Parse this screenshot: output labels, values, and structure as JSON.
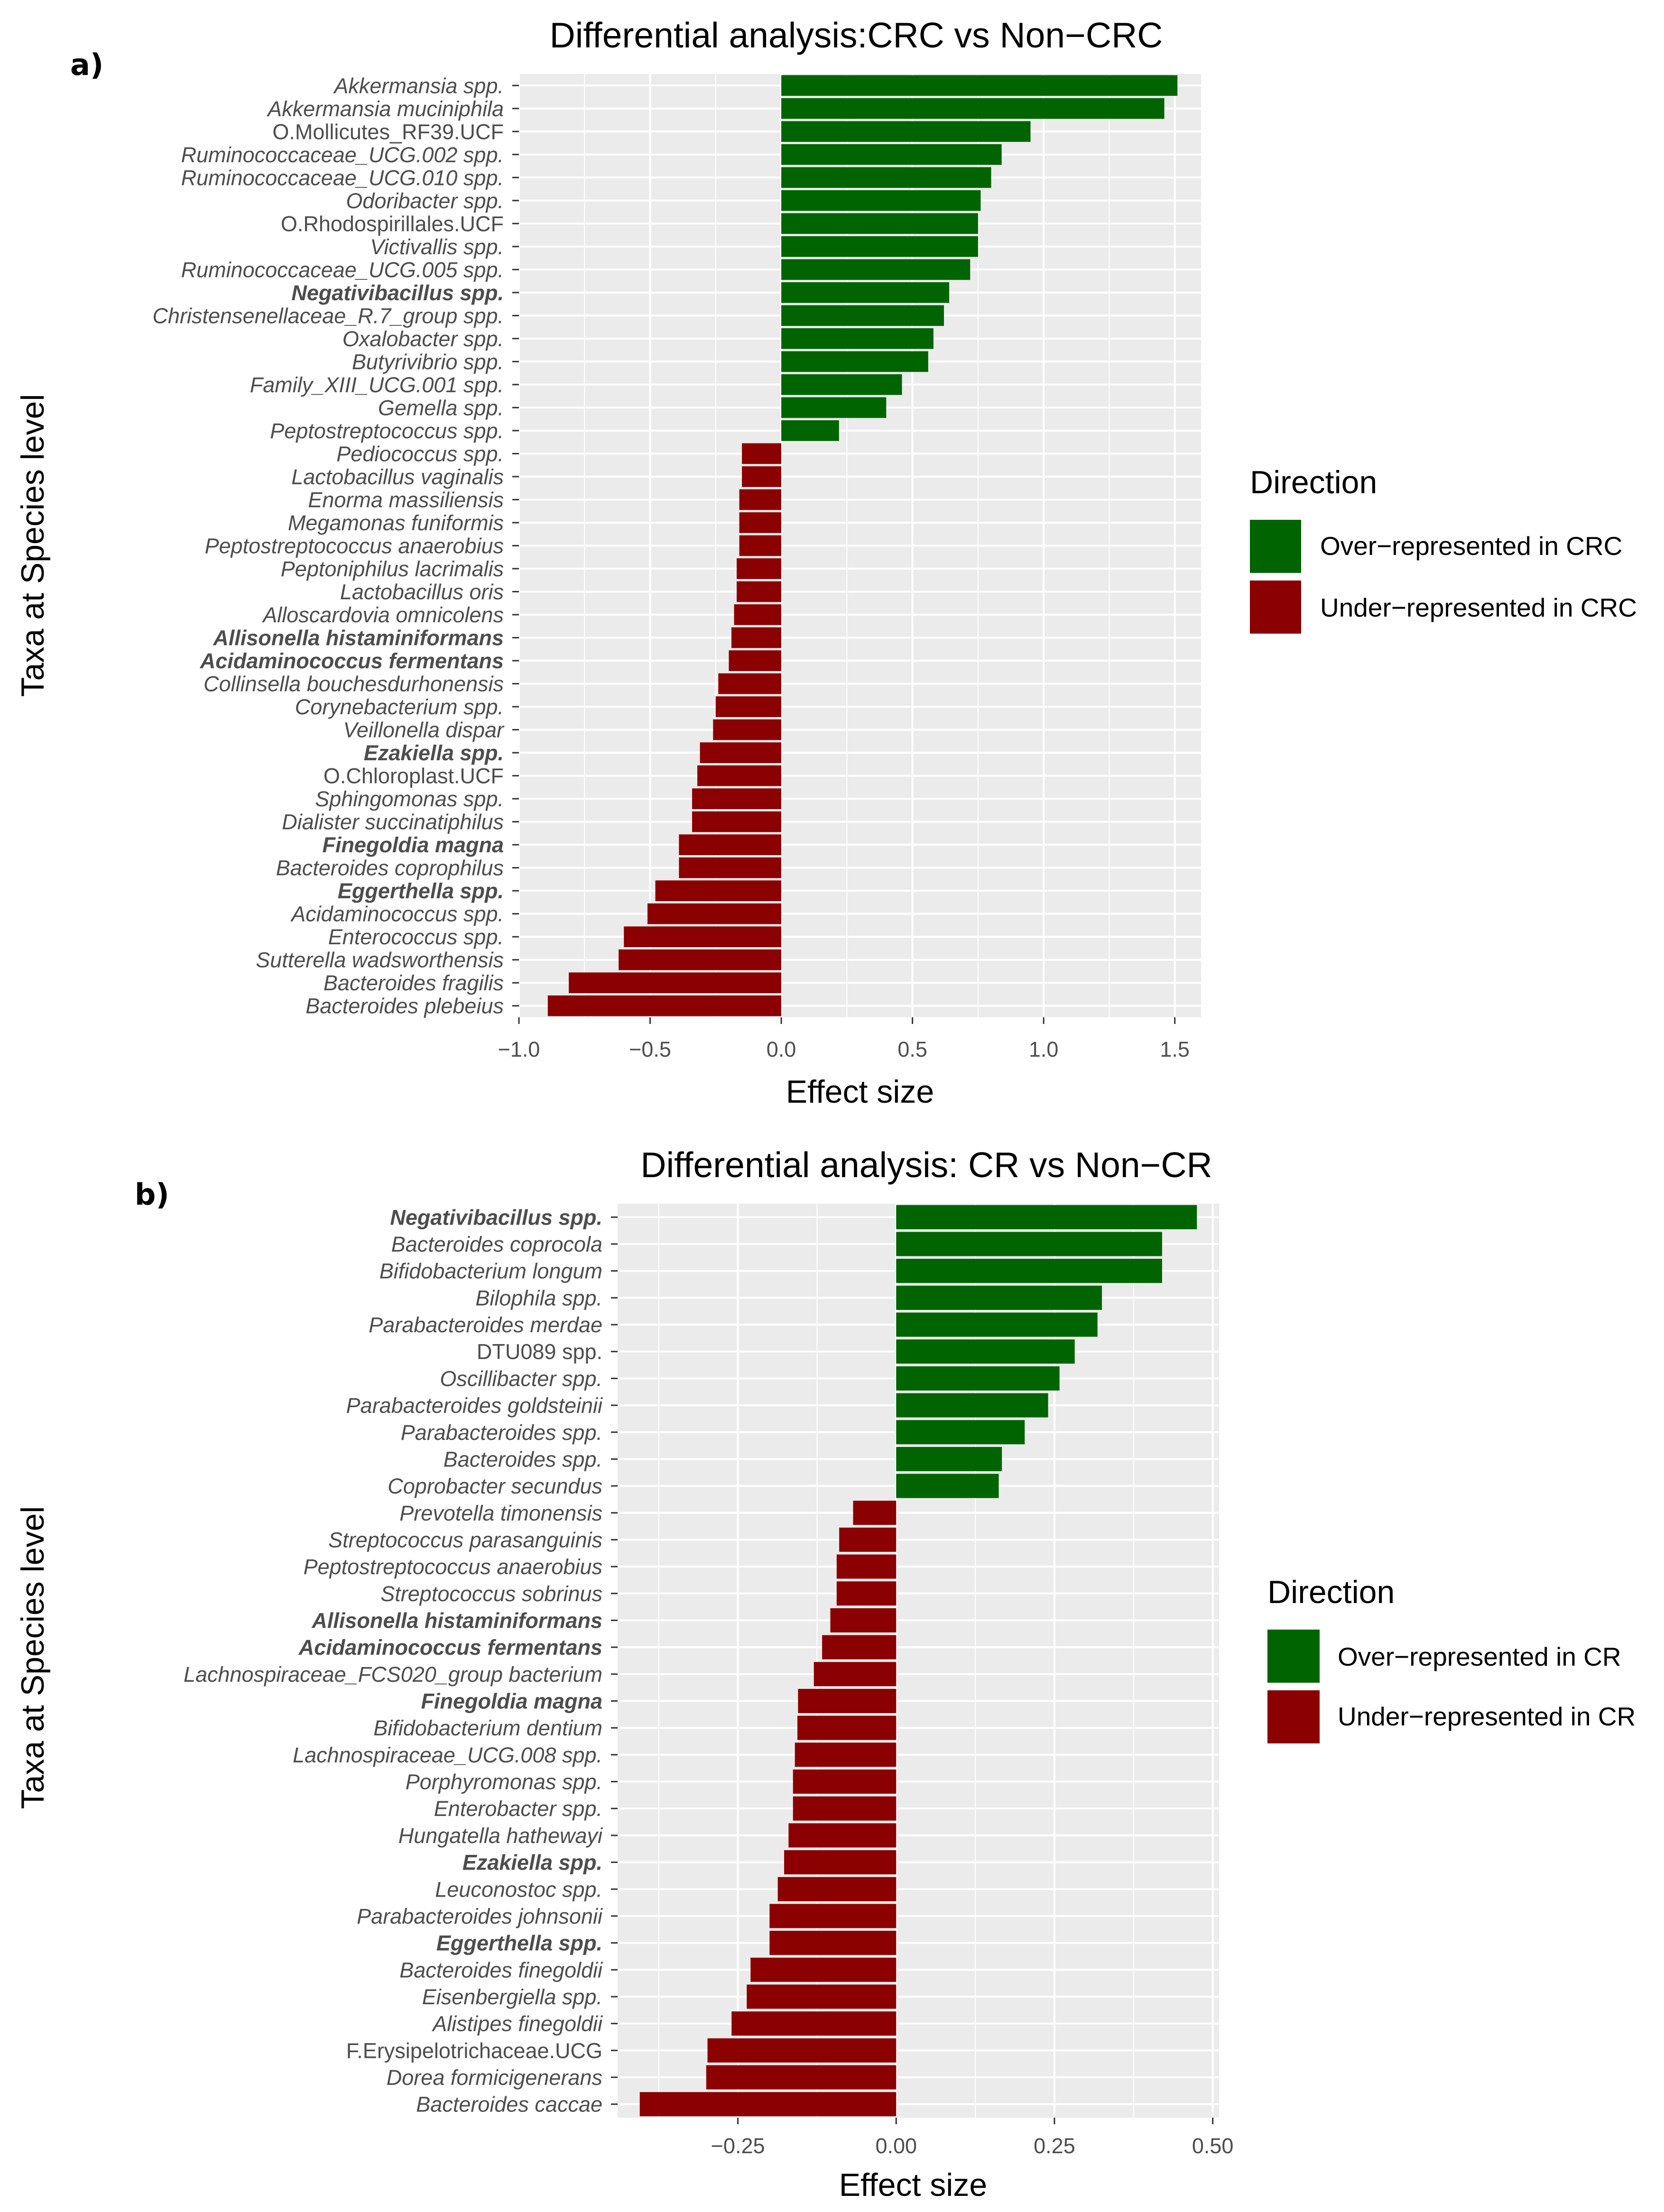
{
  "chart_data": [
    {
      "type": "bar",
      "orientation": "horizontal",
      "panel_label": "a)",
      "title": "Differential analysis:CRC vs Non−CRC",
      "xlabel": "Effect size",
      "ylabel": "Taxa at Species level",
      "xlim": [
        -1.0,
        1.6
      ],
      "xticks": [
        -1.0,
        -0.5,
        0.0,
        0.5,
        1.0,
        1.5
      ],
      "xtick_labels": [
        "−1.0",
        "−0.5",
        "0.0",
        "0.5",
        "1.0",
        "1.5"
      ],
      "grid": true,
      "legend": {
        "title": "Direction",
        "position": "right",
        "items": [
          {
            "label": "Over−represented in CRC",
            "color": "#006400"
          },
          {
            "label": "Under−represented in CRC",
            "color": "#8b0000"
          }
        ]
      },
      "categories": [
        "Akkermansia spp.",
        "Akkermansia muciniphila",
        "O.Mollicutes_RF39.UCF",
        "Ruminococcaceae_UCG.002 spp.",
        "Ruminococcaceae_UCG.010 spp.",
        "Odoribacter spp.",
        "O.Rhodospirillales.UCF",
        "Victivallis spp.",
        "Ruminococcaceae_UCG.005 spp.",
        "Negativibacillus spp.",
        "Christensenellaceae_R.7_group spp.",
        "Oxalobacter spp.",
        "Butyrivibrio spp.",
        "Family_XIII_UCG.001 spp.",
        "Gemella spp.",
        "Peptostreptococcus spp.",
        "Pediococcus spp.",
        "Lactobacillus vaginalis",
        "Enorma massiliensis",
        "Megamonas funiformis",
        "Peptostreptococcus anaerobius",
        "Peptoniphilus lacrimalis",
        "Lactobacillus oris",
        "Alloscardovia omnicolens",
        "Allisonella histaminiformans",
        "Acidaminococcus fermentans",
        "Collinsella bouchesdurhonensis",
        "Corynebacterium spp.",
        "Veillonella dispar",
        "Ezakiella spp.",
        "O.Chloroplast.UCF",
        "Sphingomonas spp.",
        "Dialister succinatiphilus",
        "Finegoldia magna",
        "Bacteroides coprophilus",
        "Eggerthella spp.",
        "Acidaminococcus spp.",
        "Enterococcus spp.",
        "Sutterella wadsworthensis",
        "Bacteroides fragilis",
        "Bacteroides plebeius"
      ],
      "bold_categories": [
        "Negativibacillus spp.",
        "Allisonella histaminiformans",
        "Acidaminococcus fermentans",
        "Ezakiella spp.",
        "Finegoldia magna",
        "Eggerthella spp."
      ],
      "nonitalic_categories": [
        "O.Mollicutes_RF39.UCF",
        "O.Rhodospirillales.UCF",
        "O.Chloroplast.UCF"
      ],
      "values": [
        1.51,
        1.46,
        0.95,
        0.84,
        0.8,
        0.76,
        0.75,
        0.75,
        0.72,
        0.64,
        0.62,
        0.58,
        0.56,
        0.46,
        0.4,
        0.22,
        -0.15,
        -0.15,
        -0.16,
        -0.16,
        -0.16,
        -0.17,
        -0.17,
        -0.18,
        -0.19,
        -0.2,
        -0.24,
        -0.25,
        -0.26,
        -0.31,
        -0.32,
        -0.34,
        -0.34,
        -0.39,
        -0.39,
        -0.48,
        -0.51,
        -0.6,
        -0.62,
        -0.81,
        -0.89
      ]
    },
    {
      "type": "bar",
      "orientation": "horizontal",
      "panel_label": "b)",
      "title": "Differential analysis: CR vs Non−CR",
      "xlabel": "Effect size",
      "ylabel": "Taxa at Species level",
      "xlim": [
        -0.44,
        0.51
      ],
      "xticks": [
        -0.25,
        0.0,
        0.25,
        0.5
      ],
      "xtick_labels": [
        "−0.25",
        "0.00",
        "0.25",
        "0.50"
      ],
      "grid": true,
      "legend": {
        "title": "Direction",
        "position": "right",
        "items": [
          {
            "label": "Over−represented in CR",
            "color": "#006400"
          },
          {
            "label": "Under−represented in CR",
            "color": "#8b0000"
          }
        ]
      },
      "categories": [
        "Negativibacillus spp.",
        "Bacteroides coprocola",
        "Bifidobacterium longum",
        "Bilophila spp.",
        "Parabacteroides merdae",
        "DTU089 spp.",
        "Oscillibacter spp.",
        "Parabacteroides goldsteinii",
        "Parabacteroides spp.",
        "Bacteroides spp.",
        "Coprobacter secundus",
        "Prevotella timonensis",
        "Streptococcus parasanguinis",
        "Peptostreptococcus anaerobius",
        "Streptococcus sobrinus",
        "Allisonella histaminiformans",
        "Acidaminococcus fermentans",
        "Lachnospiraceae_FCS020_group bacterium",
        "Finegoldia magna",
        "Bifidobacterium dentium",
        "Lachnospiraceae_UCG.008 spp.",
        "Porphyromonas spp.",
        "Enterobacter spp.",
        "Hungatella hathewayi",
        "Ezakiella spp.",
        "Leuconostoc spp.",
        "Parabacteroides johnsonii",
        "Eggerthella spp.",
        "Bacteroides finegoldii",
        "Eisenbergiella spp.",
        "Alistipes finegoldii",
        "F.Erysipelotrichaceae.UCG",
        "Dorea formicigenerans",
        "Bacteroides caccae"
      ],
      "bold_categories": [
        "Negativibacillus spp.",
        "Allisonella histaminiformans",
        "Acidaminococcus fermentans",
        "Finegoldia magna",
        "Ezakiella spp.",
        "Eggerthella spp."
      ],
      "nonitalic_categories": [
        "DTU089 spp.",
        "F.Erysipelotrichaceae.UCG"
      ],
      "values": [
        0.475,
        0.42,
        0.42,
        0.325,
        0.318,
        0.282,
        0.258,
        0.24,
        0.203,
        0.167,
        0.162,
        -0.068,
        -0.09,
        -0.094,
        -0.094,
        -0.104,
        -0.117,
        -0.13,
        -0.155,
        -0.156,
        -0.16,
        -0.163,
        -0.163,
        -0.17,
        -0.177,
        -0.187,
        -0.2,
        -0.2,
        -0.23,
        -0.236,
        -0.26,
        -0.298,
        -0.3,
        -0.405
      ]
    }
  ]
}
